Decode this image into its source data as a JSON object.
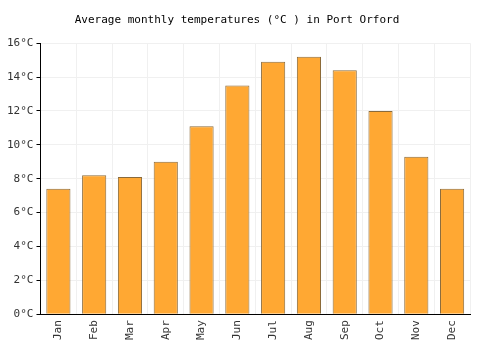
{
  "chart_data": {
    "type": "bar",
    "title": "Average monthly temperatures (°C ) in Port Orford",
    "categories": [
      "Jan",
      "Feb",
      "Mar",
      "Apr",
      "May",
      "Jun",
      "Jul",
      "Aug",
      "Sep",
      "Oct",
      "Nov",
      "Dec"
    ],
    "values": [
      7.4,
      8.2,
      8.1,
      9.0,
      11.1,
      13.5,
      14.9,
      15.2,
      14.4,
      12.0,
      9.3,
      7.4
    ],
    "color": "#ffa833",
    "ylim": [
      0,
      16
    ],
    "yticks": [
      {
        "value": 0,
        "label": "0°C"
      },
      {
        "value": 2,
        "label": "2°C"
      },
      {
        "value": 4,
        "label": "4°C"
      },
      {
        "value": 6,
        "label": "6°C"
      },
      {
        "value": 8,
        "label": "8°C"
      },
      {
        "value": 10,
        "label": "10°C"
      },
      {
        "value": 12,
        "label": "12°C"
      },
      {
        "value": 14,
        "label": "14°C"
      },
      {
        "value": 16,
        "label": "16°C"
      }
    ],
    "grid": true
  }
}
